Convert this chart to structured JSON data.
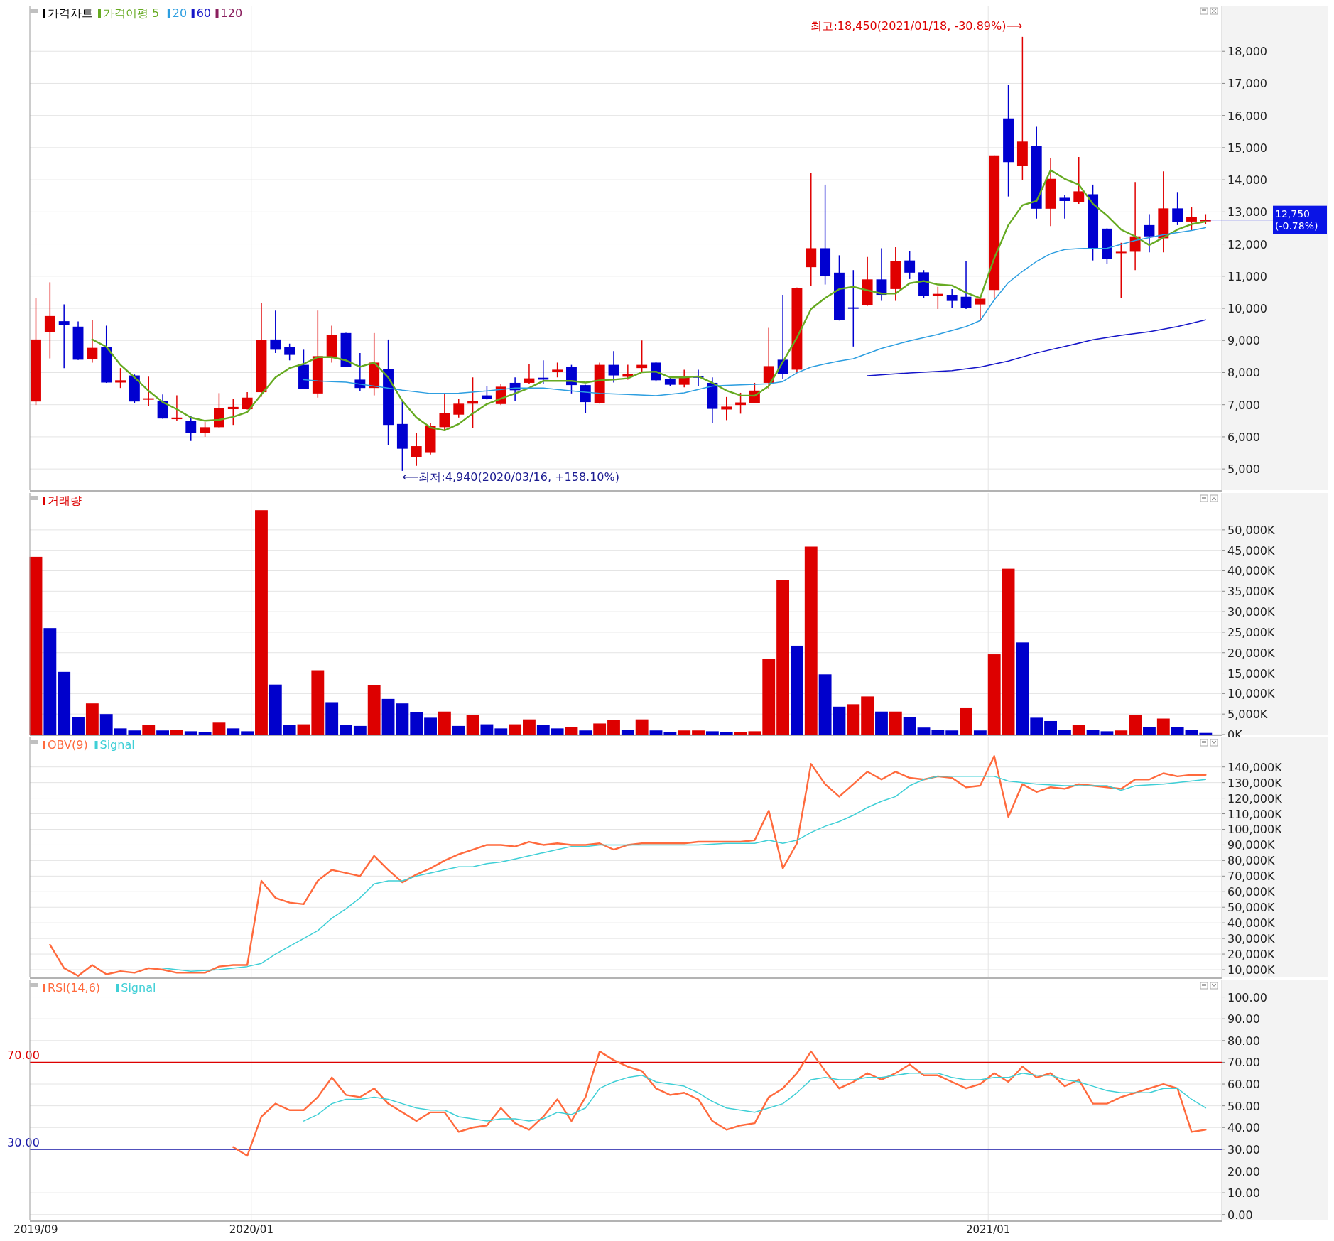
{
  "chart_data": [
    {
      "type": "candlestick",
      "title": "가격차트",
      "legend": "top left",
      "grid": true,
      "tick_labels": "y",
      "x": [
        "2019-09-16",
        "2019-09-23",
        "2019-09-30",
        "2019-10-07",
        "2019-10-14",
        "2019-10-21",
        "2019-10-28",
        "2019-11-04",
        "2019-11-11",
        "2019-11-18",
        "2019-11-25",
        "2019-12-02",
        "2019-12-09",
        "2019-12-16",
        "2019-12-23",
        "2019-12-30",
        "2020-01-06",
        "2020-01-13",
        "2020-01-20",
        "2020-01-27",
        "2020-02-03",
        "2020-02-10",
        "2020-02-17",
        "2020-02-24",
        "2020-03-02",
        "2020-03-09",
        "2020-03-16",
        "2020-03-23",
        "2020-03-30",
        "2020-04-06",
        "2020-04-13",
        "2020-04-20",
        "2020-04-27",
        "2020-05-04",
        "2020-05-11",
        "2020-05-18",
        "2020-05-25",
        "2020-06-01",
        "2020-06-08",
        "2020-06-15",
        "2020-06-22",
        "2020-06-29",
        "2020-07-06",
        "2020-07-13",
        "2020-07-20",
        "2020-07-27",
        "2020-08-03",
        "2020-08-10",
        "2020-08-17",
        "2020-08-24",
        "2020-08-31",
        "2020-09-07",
        "2020-09-14",
        "2020-09-21",
        "2020-09-28",
        "2020-10-05",
        "2020-10-12",
        "2020-10-19",
        "2020-10-26",
        "2020-11-02",
        "2020-11-09",
        "2020-11-16",
        "2020-11-23",
        "2020-11-30",
        "2020-12-07",
        "2020-12-14",
        "2020-12-21",
        "2020-12-28",
        "2021-01-04",
        "2021-01-11",
        "2021-01-18",
        "2021-01-25",
        "2021-02-01",
        "2021-02-08",
        "2021-02-15",
        "2021-02-22",
        "2021-03-01",
        "2021-03-08",
        "2021-03-15",
        "2021-03-22",
        "2021-03-29",
        "2021-04-05",
        "2021-04-12",
        "2021-04-19"
      ],
      "ohlc": [
        [
          7100,
          10330,
          6990,
          9030
        ],
        [
          9270,
          10810,
          8440,
          9760
        ],
        [
          9600,
          10120,
          8140,
          9480
        ],
        [
          9430,
          9590,
          8390,
          8400
        ],
        [
          8420,
          9630,
          8310,
          8770
        ],
        [
          8800,
          9460,
          7680,
          7690
        ],
        [
          7690,
          8140,
          7520,
          7760
        ],
        [
          7910,
          7940,
          7060,
          7100
        ],
        [
          7190,
          7870,
          6950,
          7200
        ],
        [
          7120,
          7320,
          6560,
          6570
        ],
        [
          6550,
          7290,
          6500,
          6600
        ],
        [
          6490,
          6660,
          5870,
          6110
        ],
        [
          6130,
          6460,
          6000,
          6300
        ],
        [
          6300,
          7360,
          6290,
          6900
        ],
        [
          6860,
          7190,
          6370,
          6930
        ],
        [
          6860,
          7390,
          6850,
          7220
        ],
        [
          7390,
          10160,
          7250,
          9010
        ],
        [
          9030,
          9930,
          8610,
          8710
        ],
        [
          8800,
          8900,
          8380,
          8550
        ],
        [
          8240,
          8710,
          7480,
          7490
        ],
        [
          7350,
          9930,
          7220,
          8510
        ],
        [
          8470,
          9460,
          8310,
          9170
        ],
        [
          9230,
          9240,
          8170,
          8180
        ],
        [
          7780,
          8610,
          7430,
          7520
        ],
        [
          7520,
          9230,
          7290,
          8310
        ],
        [
          8110,
          9030,
          5740,
          6370
        ],
        [
          6400,
          7120,
          4940,
          5630
        ],
        [
          5370,
          6130,
          5100,
          5710
        ],
        [
          5500,
          6420,
          5450,
          6330
        ],
        [
          6300,
          7350,
          6200,
          6750
        ],
        [
          6690,
          7190,
          6600,
          7030
        ],
        [
          7030,
          7850,
          6270,
          7120
        ],
        [
          7290,
          7580,
          7160,
          7190
        ],
        [
          7020,
          7650,
          6990,
          7560
        ],
        [
          7680,
          7850,
          7120,
          7450
        ],
        [
          7680,
          8270,
          7650,
          7820
        ],
        [
          7840,
          8380,
          7650,
          7780
        ],
        [
          8010,
          8310,
          7850,
          8090
        ],
        [
          8180,
          8240,
          7350,
          7610
        ],
        [
          7610,
          7620,
          6730,
          7080
        ],
        [
          7060,
          8310,
          7030,
          8240
        ],
        [
          8240,
          8670,
          7690,
          7910
        ],
        [
          7870,
          8240,
          7780,
          7950
        ],
        [
          8140,
          9000,
          8010,
          8240
        ],
        [
          8310,
          8330,
          7720,
          7760
        ],
        [
          7790,
          7880,
          7580,
          7620
        ],
        [
          7620,
          8090,
          7540,
          7880
        ],
        [
          7890,
          8090,
          7580,
          7840
        ],
        [
          7680,
          7850,
          6440,
          6870
        ],
        [
          6850,
          7240,
          6520,
          6940
        ],
        [
          6990,
          7370,
          6720,
          7070
        ],
        [
          7060,
          7680,
          7040,
          7440
        ],
        [
          7680,
          9390,
          7480,
          8200
        ],
        [
          8400,
          10420,
          7790,
          7950
        ],
        [
          8090,
          10650,
          7990,
          10640
        ],
        [
          11280,
          14210,
          10690,
          11870
        ],
        [
          11870,
          13850,
          10740,
          11010
        ],
        [
          11110,
          11650,
          9620,
          9640
        ],
        [
          10030,
          11190,
          8810,
          10000
        ],
        [
          10090,
          11600,
          10080,
          10900
        ],
        [
          10900,
          11870,
          10230,
          10420
        ],
        [
          10600,
          11900,
          10230,
          11460
        ],
        [
          11490,
          11790,
          10910,
          11110
        ],
        [
          11120,
          11190,
          10320,
          10390
        ],
        [
          10390,
          10670,
          9980,
          10450
        ],
        [
          10420,
          10600,
          10020,
          10230
        ],
        [
          10360,
          11460,
          9980,
          10020
        ],
        [
          10120,
          10310,
          9600,
          10300
        ],
        [
          10570,
          14760,
          10320,
          14760
        ],
        [
          15910,
          16950,
          13480,
          14550
        ],
        [
          14440,
          18450,
          13990,
          15190
        ],
        [
          15060,
          15650,
          12790,
          13100
        ],
        [
          13100,
          14670,
          12560,
          14030
        ],
        [
          13440,
          13520,
          12790,
          13340
        ],
        [
          13310,
          14710,
          13250,
          13640
        ],
        [
          13550,
          13850,
          11490,
          11870
        ],
        [
          12480,
          12490,
          11380,
          11540
        ],
        [
          11720,
          12040,
          10320,
          11760
        ],
        [
          11760,
          13930,
          11190,
          12240
        ],
        [
          12590,
          12930,
          11740,
          12240
        ],
        [
          12180,
          14260,
          11740,
          13110
        ],
        [
          13110,
          13620,
          12590,
          12680
        ],
        [
          12700,
          13140,
          12420,
          12850
        ],
        [
          12750,
          12930,
          12610,
          12750
        ]
      ],
      "series": [
        {
          "name": "가격이평 5",
          "type": "line",
          "color": "#66aa22",
          "values": [
            null,
            null,
            null,
            null,
            9030,
            8800,
            8240,
            7850,
            7430,
            7080,
            6860,
            6600,
            6500,
            6530,
            6620,
            6770,
            7320,
            7850,
            8140,
            8270,
            8480,
            8480,
            8380,
            8180,
            8310,
            7850,
            7120,
            6600,
            6290,
            6200,
            6400,
            6730,
            7020,
            7190,
            7350,
            7520,
            7740,
            7740,
            7740,
            7690,
            7760,
            7780,
            7820,
            8010,
            8030,
            7850,
            7850,
            7880,
            7680,
            7440,
            7290,
            7280,
            7580,
            8330,
            9090,
            9980,
            10320,
            10600,
            10670,
            10560,
            10460,
            10460,
            10780,
            10850,
            10740,
            10710,
            10490,
            10320,
            11560,
            12590,
            13210,
            13340,
            14300,
            14030,
            13850,
            13250,
            12890,
            12450,
            12240,
            11970,
            12200,
            12450,
            12620,
            12700
          ]
        },
        {
          "name": "20",
          "type": "line",
          "color": "#2d9ee0",
          "x": [
            "2020-01-27",
            "2020-02-03",
            "2020-02-10",
            "2020-02-17",
            "2020-03-02",
            "2020-03-16",
            "2020-03-30",
            "2020-04-13",
            "2020-04-27",
            "2020-05-11",
            "2020-05-25",
            "2020-06-08",
            "2020-06-22",
            "2020-07-06",
            "2020-07-20",
            "2020-08-03",
            "2020-08-17",
            "2020-08-31",
            "2020-09-14",
            "2020-09-21",
            "2020-09-28",
            "2020-10-05",
            "2020-10-12",
            "2020-10-19",
            "2020-10-26",
            "2020-11-09",
            "2020-11-23",
            "2020-12-07",
            "2020-12-21",
            "2020-12-28",
            "2021-01-04",
            "2021-01-11",
            "2021-01-18",
            "2021-01-25",
            "2021-02-01",
            "2021-02-08",
            "2021-02-15",
            "2021-03-01",
            "2021-03-15",
            "2021-03-29",
            "2021-04-12",
            "2021-04-19"
          ],
          "values": [
            7780,
            7740,
            7720,
            7700,
            7580,
            7450,
            7350,
            7360,
            7430,
            7520,
            7520,
            7430,
            7350,
            7320,
            7280,
            7370,
            7580,
            7620,
            7650,
            7720,
            7990,
            8170,
            8270,
            8360,
            8430,
            8750,
            8990,
            9190,
            9430,
            9620,
            10260,
            10800,
            11150,
            11460,
            11700,
            11830,
            11860,
            11870,
            12110,
            12290,
            12420,
            12510
          ]
        },
        {
          "name": "60",
          "type": "line",
          "color": "#1414c8",
          "x": [
            "2020-11-02",
            "2020-11-23",
            "2020-12-14",
            "2020-12-28",
            "2021-01-11",
            "2021-01-25",
            "2021-02-08",
            "2021-02-22",
            "2021-03-08",
            "2021-03-22",
            "2021-04-05",
            "2021-04-19"
          ],
          "values": [
            7900,
            7990,
            8060,
            8170,
            8360,
            8610,
            8810,
            9020,
            9160,
            9270,
            9430,
            9640
          ]
        },
        {
          "name": "120",
          "type": "line",
          "color": "#8a1f5e",
          "values": [
            null,
            null,
            null,
            null,
            null,
            null,
            null,
            null,
            null,
            null,
            null,
            null,
            null,
            null,
            null,
            null,
            null,
            null,
            null,
            null,
            null,
            null,
            null,
            null,
            null,
            null,
            null,
            null,
            null,
            null,
            null,
            null,
            null,
            null,
            null,
            null,
            null,
            null,
            null,
            null,
            null,
            null,
            null,
            null,
            null,
            null,
            null,
            null,
            null,
            null,
            null,
            null,
            null,
            null,
            null,
            null,
            null,
            null,
            null,
            null,
            null,
            null,
            null,
            null,
            null,
            null,
            null,
            null,
            null,
            null,
            null,
            null,
            null,
            null,
            null,
            null,
            null,
            null,
            null,
            null,
            null,
            null,
            null,
            null
          ]
        }
      ],
      "annotations": [
        {
          "text": "최고:18,450(2021/01/18, -30.89%)⟶",
          "x": "2021-01-18",
          "y": 18450
        },
        {
          "text": "⟵최저:4,940(2020/03/16, +158.10%)",
          "x": "2020-03-16",
          "y": 4940
        },
        {
          "text": "12,750 (-0.78%)",
          "x": "2021-04-19",
          "y": 12750
        }
      ],
      "xlim": [
        "2019-09-13",
        "2021-04-27"
      ],
      "xticks": [
        {
          "value": "2020-01-01",
          "label": null
        },
        {
          "value": "2021-01-01",
          "label": null
        }
      ],
      "ylim": [
        4340,
        19420
      ],
      "yticks": [
        {
          "value": 5000,
          "label": "5,000"
        },
        {
          "value": 6000,
          "label": "6,000"
        },
        {
          "value": 7000,
          "label": "7,000"
        },
        {
          "value": 8000,
          "label": "8,000"
        },
        {
          "value": 9000,
          "label": "9,000"
        },
        {
          "value": 10000,
          "label": "10,000"
        },
        {
          "value": 11000,
          "label": "11,000"
        },
        {
          "value": 12000,
          "label": "12,000"
        },
        {
          "value": 13000,
          "label": "13,000"
        },
        {
          "value": 14000,
          "label": "14,000"
        },
        {
          "value": 15000,
          "label": "15,000"
        },
        {
          "value": 16000,
          "label": "16,000"
        },
        {
          "value": 17000,
          "label": "17,000"
        },
        {
          "value": 18000,
          "label": "18,000"
        }
      ]
    },
    {
      "type": "bar",
      "legend": "top left",
      "grid": true,
      "tick_labels": "y",
      "x": [
        "2019-09-16",
        "2019-09-23",
        "2019-09-30",
        "2019-10-07",
        "2019-10-14",
        "2019-10-21",
        "2019-10-28",
        "2019-11-04",
        "2019-11-11",
        "2019-11-18",
        "2019-11-25",
        "2019-12-02",
        "2019-12-09",
        "2019-12-16",
        "2019-12-23",
        "2019-12-30",
        "2020-01-06",
        "2020-01-13",
        "2020-01-20",
        "2020-01-27",
        "2020-02-03",
        "2020-02-10",
        "2020-02-17",
        "2020-02-24",
        "2020-03-02",
        "2020-03-09",
        "2020-03-16",
        "2020-03-23",
        "2020-03-30",
        "2020-04-06",
        "2020-04-13",
        "2020-04-20",
        "2020-04-27",
        "2020-05-04",
        "2020-05-11",
        "2020-05-18",
        "2020-05-25",
        "2020-06-01",
        "2020-06-08",
        "2020-06-15",
        "2020-06-22",
        "2020-06-29",
        "2020-07-06",
        "2020-07-13",
        "2020-07-20",
        "2020-07-27",
        "2020-08-03",
        "2020-08-10",
        "2020-08-17",
        "2020-08-24",
        "2020-08-31",
        "2020-09-07",
        "2020-09-14",
        "2020-09-21",
        "2020-09-28",
        "2020-10-05",
        "2020-10-12",
        "2020-10-19",
        "2020-10-26",
        "2020-11-02",
        "2020-11-09",
        "2020-11-16",
        "2020-11-23",
        "2020-11-30",
        "2020-12-07",
        "2020-12-14",
        "2020-12-21",
        "2020-12-28",
        "2021-01-04",
        "2021-01-11",
        "2021-01-18",
        "2021-01-25",
        "2021-02-01",
        "2021-02-08",
        "2021-02-15",
        "2021-02-22",
        "2021-03-01",
        "2021-03-08",
        "2021-03-15",
        "2021-03-22",
        "2021-03-29",
        "2021-04-05",
        "2021-04-12",
        "2021-04-19"
      ],
      "series": [
        {
          "name": "거래량",
          "color": "#dd0000",
          "values": [
            43400,
            26000,
            15300,
            4300,
            7600,
            5000,
            1500,
            1000,
            2300,
            1000,
            1200,
            800,
            600,
            2900,
            1500,
            800,
            54800,
            12200,
            2300,
            2500,
            15700,
            7900,
            2300,
            2100,
            12000,
            8700,
            7600,
            5400,
            4100,
            5600,
            2100,
            4800,
            2500,
            1500,
            2500,
            3700,
            2300,
            1500,
            1900,
            1000,
            2700,
            3500,
            1200,
            3700,
            1000,
            600,
            1000,
            1000,
            800,
            600,
            600,
            800,
            18400,
            37800,
            21700,
            45900,
            14700,
            6800,
            7400,
            9300,
            5600,
            5600,
            4300,
            1700,
            1200,
            1000,
            6600,
            1000,
            19600,
            40500,
            22500,
            4100,
            3300,
            1200,
            2300,
            1200,
            800,
            1000,
            4800,
            1900,
            3900,
            1900,
            1200,
            400
          ],
          "colors": [
            "#dd0000",
            "#0000cc",
            "#0000cc",
            "#0000cc",
            "#dd0000",
            "#0000cc",
            "#0000cc",
            "#0000cc",
            "#dd0000",
            "#0000cc",
            "#dd0000",
            "#0000cc",
            "#0000cc",
            "#dd0000",
            "#0000cc",
            "#0000cc",
            "#dd0000",
            "#0000cc",
            "#0000cc",
            "#dd0000",
            "#dd0000",
            "#0000cc",
            "#0000cc",
            "#0000cc",
            "#dd0000",
            "#0000cc",
            "#0000cc",
            "#0000cc",
            "#0000cc",
            "#dd0000",
            "#0000cc",
            "#dd0000",
            "#0000cc",
            "#0000cc",
            "#dd0000",
            "#dd0000",
            "#0000cc",
            "#0000cc",
            "#dd0000",
            "#0000cc",
            "#dd0000",
            "#dd0000",
            "#0000cc",
            "#dd0000",
            "#0000cc",
            "#0000cc",
            "#dd0000",
            "#dd0000",
            "#0000cc",
            "#0000cc",
            "#dd0000",
            "#dd0000",
            "#dd0000",
            "#dd0000",
            "#0000cc",
            "#dd0000",
            "#0000cc",
            "#0000cc",
            "#dd0000",
            "#dd0000",
            "#0000cc",
            "#dd0000",
            "#0000cc",
            "#0000cc",
            "#0000cc",
            "#0000cc",
            "#dd0000",
            "#0000cc",
            "#dd0000",
            "#dd0000",
            "#0000cc",
            "#0000cc",
            "#0000cc",
            "#0000cc",
            "#dd0000",
            "#0000cc",
            "#0000cc",
            "#dd0000",
            "#dd0000",
            "#0000cc",
            "#dd0000",
            "#0000cc",
            "#0000cc",
            "#0000cc"
          ]
        }
      ],
      "xlim": [
        "2019-09-13",
        "2021-04-27"
      ],
      "xticks": [
        {
          "value": "2020-01-01",
          "label": null
        },
        {
          "value": "2021-01-01",
          "label": null
        }
      ],
      "ylim": [
        0,
        59000
      ],
      "yticks": [
        {
          "value": 0,
          "label": "0K"
        },
        {
          "value": 5000,
          "label": "5,000K"
        },
        {
          "value": 10000,
          "label": "10,000K"
        },
        {
          "value": 15000,
          "label": "15,000K"
        },
        {
          "value": 20000,
          "label": "20,000K"
        },
        {
          "value": 25000,
          "label": "25,000K"
        },
        {
          "value": 30000,
          "label": "30,000K"
        },
        {
          "value": 35000,
          "label": "35,000K"
        },
        {
          "value": 40000,
          "label": "40,000K"
        },
        {
          "value": 45000,
          "label": "45,000K"
        },
        {
          "value": 50000,
          "label": "50,000K"
        }
      ]
    },
    {
      "type": "line",
      "legend": "top left",
      "grid": true,
      "tick_labels": "y",
      "x": [
        "2019-09-23",
        "2019-09-30",
        "2019-10-07",
        "2019-10-14",
        "2019-10-21",
        "2019-10-28",
        "2019-11-04",
        "2019-11-11",
        "2019-11-18",
        "2019-11-25",
        "2019-12-02",
        "2019-12-09",
        "2019-12-16",
        "2019-12-23",
        "2019-12-30",
        "2020-01-06",
        "2020-01-13",
        "2020-01-20",
        "2020-01-27",
        "2020-02-03",
        "2020-02-10",
        "2020-02-17",
        "2020-02-24",
        "2020-03-02",
        "2020-03-09",
        "2020-03-16",
        "2020-03-23",
        "2020-03-30",
        "2020-04-06",
        "2020-04-13",
        "2020-04-20",
        "2020-04-27",
        "2020-05-04",
        "2020-05-11",
        "2020-05-18",
        "2020-05-25",
        "2020-06-01",
        "2020-06-08",
        "2020-06-15",
        "2020-06-22",
        "2020-06-29",
        "2020-07-06",
        "2020-07-13",
        "2020-07-20",
        "2020-07-27",
        "2020-08-03",
        "2020-08-10",
        "2020-08-17",
        "2020-08-24",
        "2020-08-31",
        "2020-09-07",
        "2020-09-14",
        "2020-09-21",
        "2020-09-28",
        "2020-10-05",
        "2020-10-12",
        "2020-10-19",
        "2020-10-26",
        "2020-11-02",
        "2020-11-09",
        "2020-11-16",
        "2020-11-23",
        "2020-11-30",
        "2020-12-07",
        "2020-12-14",
        "2020-12-21",
        "2020-12-28",
        "2021-01-04",
        "2021-01-11",
        "2021-01-18",
        "2021-01-25",
        "2021-02-01",
        "2021-02-08",
        "2021-02-15",
        "2021-02-22",
        "2021-03-01",
        "2021-03-08",
        "2021-03-15",
        "2021-03-22",
        "2021-03-29",
        "2021-04-05",
        "2021-04-12",
        "2021-04-19"
      ],
      "series": [
        {
          "name": "OBV(9)",
          "color": "#ff6a3d",
          "values": [
            26000,
            11000,
            6000,
            13000,
            7000,
            9000,
            8000,
            11000,
            10000,
            8000,
            8000,
            8000,
            12000,
            13000,
            13000,
            67000,
            56000,
            53000,
            52000,
            67000,
            74000,
            72000,
            70000,
            83000,
            74000,
            66000,
            71000,
            75000,
            80000,
            84000,
            87000,
            90000,
            90000,
            89000,
            92000,
            90000,
            91000,
            90000,
            90000,
            91000,
            87000,
            90000,
            91000,
            91000,
            91000,
            91000,
            92000,
            92000,
            92000,
            92000,
            93000,
            112000,
            75000,
            91000,
            142000,
            129000,
            121000,
            129000,
            137000,
            132000,
            137000,
            133000,
            132000,
            134000,
            133000,
            127000,
            128000,
            147000,
            108000,
            129000,
            124000,
            127000,
            126000,
            129000,
            128000,
            127000,
            126000,
            132000,
            132000,
            136000,
            134000,
            135000,
            135000
          ]
        },
        {
          "name": "Signal",
          "color": "#3fcfd6",
          "x": [
            "2019-11-18",
            "2019-12-02",
            "2019-12-16",
            "2019-12-30",
            "2020-01-06",
            "2020-01-13",
            "2020-01-20",
            "2020-01-27",
            "2020-02-03",
            "2020-02-10",
            "2020-02-17",
            "2020-02-24",
            "2020-03-02",
            "2020-03-09",
            "2020-03-16",
            "2020-03-23",
            "2020-03-30",
            "2020-04-06",
            "2020-04-13",
            "2020-04-20",
            "2020-04-27",
            "2020-05-04",
            "2020-05-11",
            "2020-05-18",
            "2020-05-25",
            "2020-06-01",
            "2020-06-08",
            "2020-06-15",
            "2020-06-22",
            "2020-06-29",
            "2020-07-13",
            "2020-07-27",
            "2020-08-10",
            "2020-08-24",
            "2020-09-07",
            "2020-09-14",
            "2020-09-21",
            "2020-09-28",
            "2020-10-05",
            "2020-10-12",
            "2020-10-19",
            "2020-10-26",
            "2020-11-02",
            "2020-11-09",
            "2020-11-16",
            "2020-11-23",
            "2020-11-30",
            "2020-12-07",
            "2020-12-21",
            "2021-01-04",
            "2021-01-11",
            "2021-01-25",
            "2021-02-08",
            "2021-02-22",
            "2021-03-01",
            "2021-03-08",
            "2021-03-15",
            "2021-03-29",
            "2021-04-19"
          ],
          "values": [
            11000,
            9000,
            10000,
            12000,
            14000,
            20000,
            25000,
            30000,
            35000,
            43000,
            49000,
            56000,
            65000,
            67000,
            67000,
            70000,
            72000,
            74000,
            76000,
            76000,
            78000,
            79000,
            81000,
            83000,
            85000,
            87000,
            89000,
            89000,
            90000,
            90000,
            90000,
            90000,
            90000,
            91000,
            91000,
            93000,
            91000,
            93000,
            98000,
            102000,
            105000,
            109000,
            114000,
            118000,
            121000,
            128000,
            132000,
            134000,
            134000,
            134000,
            131000,
            129000,
            128000,
            128000,
            128000,
            125000,
            128000,
            129000,
            132000
          ]
        }
      ],
      "xlim": [
        "2019-09-13",
        "2021-04-27"
      ],
      "xticks": [
        {
          "value": "2020-01-01",
          "label": null
        },
        {
          "value": "2021-01-01",
          "label": null
        }
      ],
      "ylim": [
        5000,
        159000
      ],
      "yticks": [
        {
          "value": 10000,
          "label": "10,000K"
        },
        {
          "value": 20000,
          "label": "20,000K"
        },
        {
          "value": 30000,
          "label": "30,000K"
        },
        {
          "value": 40000,
          "label": "40,000K"
        },
        {
          "value": 50000,
          "label": "50,000K"
        },
        {
          "value": 60000,
          "label": "60,000K"
        },
        {
          "value": 70000,
          "label": "70,000K"
        },
        {
          "value": 80000,
          "label": "80,000K"
        },
        {
          "value": 90000,
          "label": "90,000K"
        },
        {
          "value": 100000,
          "label": "100,000K"
        },
        {
          "value": 110000,
          "label": "110,000K"
        },
        {
          "value": 120000,
          "label": "120,000K"
        },
        {
          "value": 130000,
          "label": "130,000K"
        },
        {
          "value": 140000,
          "label": "140,000K"
        }
      ]
    },
    {
      "type": "line",
      "legend": "top left",
      "grid": true,
      "x": [
        "2019-12-23",
        "2019-12-30",
        "2020-01-06",
        "2020-01-13",
        "2020-01-20",
        "2020-01-27",
        "2020-02-03",
        "2020-02-10",
        "2020-02-17",
        "2020-02-24",
        "2020-03-02",
        "2020-03-09",
        "2020-03-16",
        "2020-03-23",
        "2020-03-30",
        "2020-04-06",
        "2020-04-13",
        "2020-04-20",
        "2020-04-27",
        "2020-05-04",
        "2020-05-11",
        "2020-05-18",
        "2020-05-25",
        "2020-06-01",
        "2020-06-08",
        "2020-06-15",
        "2020-06-22",
        "2020-06-29",
        "2020-07-06",
        "2020-07-13",
        "2020-07-20",
        "2020-07-27",
        "2020-08-03",
        "2020-08-10",
        "2020-08-17",
        "2020-08-24",
        "2020-08-31",
        "2020-09-07",
        "2020-09-14",
        "2020-09-21",
        "2020-09-28",
        "2020-10-05",
        "2020-10-12",
        "2020-10-19",
        "2020-10-26",
        "2020-11-02",
        "2020-11-09",
        "2020-11-16",
        "2020-11-23",
        "2020-11-30",
        "2020-12-07",
        "2020-12-14",
        "2020-12-21",
        "2020-12-28",
        "2021-01-04",
        "2021-01-11",
        "2021-01-18",
        "2021-01-25",
        "2021-02-01",
        "2021-02-08",
        "2021-02-15",
        "2021-02-22",
        "2021-03-01",
        "2021-03-08",
        "2021-03-15",
        "2021-03-22",
        "2021-03-29",
        "2021-04-05",
        "2021-04-12",
        "2021-04-19"
      ],
      "series": [
        {
          "name": "RSI(14,6)",
          "color": "#ff6a3d",
          "values": [
            31,
            27,
            45,
            51,
            48,
            48,
            54,
            63,
            55,
            54,
            58,
            51,
            47,
            43,
            47,
            47,
            38,
            40,
            41,
            49,
            42,
            39,
            45,
            53,
            43,
            54,
            75,
            71,
            68,
            66,
            58,
            55,
            56,
            53,
            43,
            39,
            41,
            42,
            54,
            58,
            65,
            75,
            66,
            58,
            61,
            65,
            62,
            65,
            69,
            64,
            64,
            61,
            58,
            60,
            65,
            61,
            68,
            63,
            65,
            59,
            62,
            51,
            51,
            54,
            56,
            58,
            60,
            58,
            38,
            39
          ]
        },
        {
          "name": "Signal",
          "color": "#3fcfd6",
          "values": [
            null,
            null,
            null,
            null,
            null,
            43,
            46,
            51,
            53,
            53,
            54,
            53,
            51,
            49,
            48,
            48,
            45,
            44,
            43,
            44,
            44,
            43,
            44,
            47,
            46,
            49,
            58,
            61,
            63,
            64,
            61,
            60,
            59,
            56,
            52,
            49,
            48,
            47,
            49,
            51,
            56,
            62,
            63,
            62,
            62,
            63,
            63,
            64,
            65,
            65,
            65,
            63,
            62,
            62,
            63,
            63,
            65,
            64,
            64,
            62,
            61,
            59,
            57,
            56,
            56,
            56,
            58,
            58,
            53,
            49
          ]
        }
      ],
      "ref_lines": [
        {
          "axis": "y",
          "value": 70,
          "label": "70.00",
          "color": "#dd0000"
        },
        {
          "axis": "y",
          "value": 30,
          "label": "30.00",
          "color": "#1a1aa8"
        }
      ],
      "xlim": [
        "2019-09-13",
        "2021-04-27"
      ],
      "xticks": [
        {
          "value": "2019-09-16",
          "label": "2019/09"
        },
        {
          "value": "2020-01-01",
          "label": "2020/01"
        },
        {
          "value": "2021-01-01",
          "label": "2021/01"
        }
      ],
      "ylim": [
        -2.7,
        107.7
      ],
      "yticks": [
        {
          "value": 0,
          "label": "0.00"
        },
        {
          "value": 10,
          "label": "10.00"
        },
        {
          "value": 20,
          "label": "20.00"
        },
        {
          "value": 30,
          "label": "30.00"
        },
        {
          "value": 40,
          "label": "40.00"
        },
        {
          "value": 50,
          "label": "50.00"
        },
        {
          "value": 60,
          "label": "60.00"
        },
        {
          "value": 70,
          "label": "70.00"
        },
        {
          "value": 80,
          "label": "80.00"
        },
        {
          "value": 90,
          "label": "90.00"
        },
        {
          "value": 100,
          "label": "100.00"
        }
      ]
    }
  ]
}
